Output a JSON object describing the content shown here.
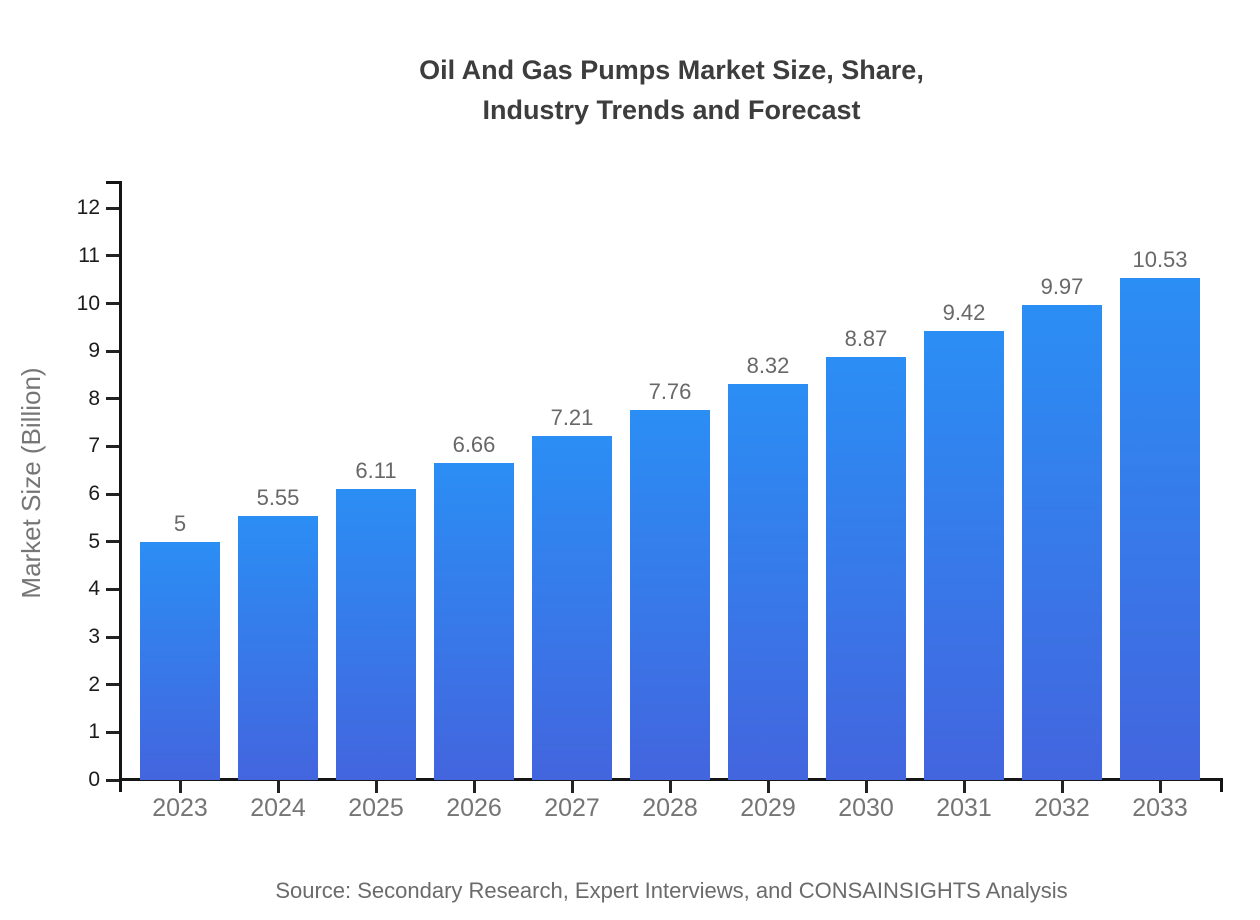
{
  "title": {
    "line1": "Oil And Gas Pumps Market Size, Share,",
    "line2": "Industry Trends and Forecast"
  },
  "source_text": "Source: Secondary Research, Expert Interviews, and CONSAINSIGHTS Analysis",
  "colors": {
    "bar_gradient_top": "#2b8ef4",
    "bar_gradient_bottom": "#4365de",
    "axis": "#151515",
    "title_text": "#3d3d3d",
    "tick_label": "#1c1c1c",
    "category_label": "#757575",
    "value_label": "#686868",
    "source_text": "#6b6b6b"
  },
  "chart_data": {
    "type": "bar",
    "title": "Oil And Gas Pumps Market Size, Share, Industry Trends and Forecast",
    "categories": [
      "2023",
      "2024",
      "2025",
      "2026",
      "2027",
      "2028",
      "2029",
      "2030",
      "2031",
      "2032",
      "2033"
    ],
    "values": [
      5,
      5.55,
      6.11,
      6.66,
      7.21,
      7.76,
      8.32,
      8.87,
      9.42,
      9.97,
      10.53
    ],
    "value_labels": [
      "5",
      "5.55",
      "6.11",
      "6.66",
      "7.21",
      "7.76",
      "8.32",
      "8.87",
      "9.42",
      "9.97",
      "10.53"
    ],
    "xlabel": "",
    "ylabel": "Market Size (Billion)",
    "y_ticks": [
      0,
      1,
      2,
      3,
      4,
      5,
      6,
      7,
      8,
      9,
      10,
      11,
      12
    ],
    "ylim": [
      0,
      12.56
    ],
    "grid": false,
    "legend": "none"
  }
}
